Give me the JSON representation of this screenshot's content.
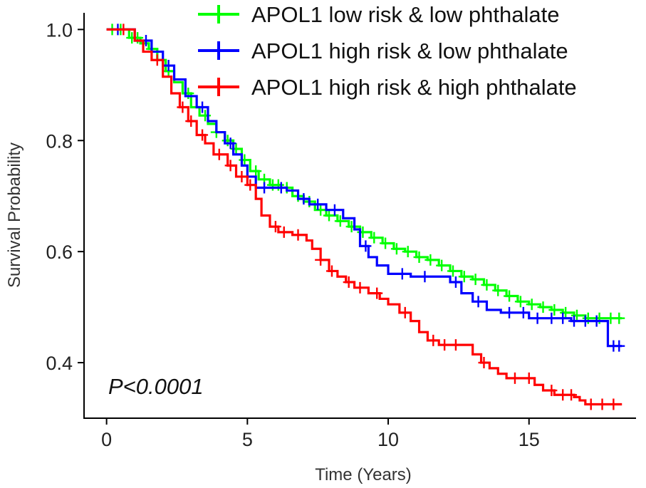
{
  "chart_data": {
    "type": "line",
    "subtype": "kaplan-meier",
    "xlabel": "Time (Years)",
    "ylabel": "Survival Probability",
    "xlim": [
      -0.8,
      18.8
    ],
    "ylim": [
      0.3,
      1.03
    ],
    "xticks": [
      0,
      5,
      10,
      15
    ],
    "xtick_labels": [
      "0",
      "5",
      "10",
      "15"
    ],
    "yticks": [
      0.4,
      0.6,
      0.8,
      1.0
    ],
    "ytick_labels": [
      "0.4",
      "0.6",
      "0.8",
      "1.0"
    ],
    "grid": false,
    "legend_position": "top-right",
    "annotation": "P<0.0001",
    "series": [
      {
        "name": "APOL1 low risk & low phthalate",
        "color": "#00ff00",
        "steps": [
          [
            0,
            1.0
          ],
          [
            0.8,
            0.985
          ],
          [
            1.2,
            0.975
          ],
          [
            1.5,
            0.965
          ],
          [
            1.8,
            0.945
          ],
          [
            2.1,
            0.925
          ],
          [
            2.4,
            0.905
          ],
          [
            2.7,
            0.885
          ],
          [
            3.0,
            0.86
          ],
          [
            3.3,
            0.845
          ],
          [
            3.6,
            0.83
          ],
          [
            3.9,
            0.815
          ],
          [
            4.2,
            0.8
          ],
          [
            4.5,
            0.785
          ],
          [
            4.8,
            0.765
          ],
          [
            5.1,
            0.745
          ],
          [
            5.4,
            0.73
          ],
          [
            5.8,
            0.72
          ],
          [
            6.2,
            0.715
          ],
          [
            6.6,
            0.7
          ],
          [
            7.0,
            0.69
          ],
          [
            7.4,
            0.675
          ],
          [
            7.8,
            0.665
          ],
          [
            8.2,
            0.655
          ],
          [
            8.6,
            0.645
          ],
          [
            9.0,
            0.635
          ],
          [
            9.4,
            0.625
          ],
          [
            9.8,
            0.615
          ],
          [
            10.2,
            0.605
          ],
          [
            10.6,
            0.6
          ],
          [
            11.0,
            0.59
          ],
          [
            11.4,
            0.585
          ],
          [
            11.8,
            0.575
          ],
          [
            12.2,
            0.565
          ],
          [
            12.6,
            0.555
          ],
          [
            13.0,
            0.55
          ],
          [
            13.4,
            0.54
          ],
          [
            13.8,
            0.53
          ],
          [
            14.2,
            0.52
          ],
          [
            14.6,
            0.51
          ],
          [
            15.0,
            0.505
          ],
          [
            15.4,
            0.5
          ],
          [
            15.8,
            0.495
          ],
          [
            16.2,
            0.49
          ],
          [
            16.6,
            0.485
          ],
          [
            17.0,
            0.48
          ],
          [
            18.3,
            0.48
          ]
        ],
        "censor_x": [
          0.2,
          0.5,
          0.9,
          1.1,
          1.6,
          2.2,
          2.9,
          3.5,
          3.9,
          4.3,
          4.6,
          4.9,
          5.3,
          5.6,
          5.9,
          6.1,
          6.4,
          6.8,
          7.2,
          7.6,
          7.9,
          8.3,
          8.7,
          9.1,
          9.5,
          9.9,
          10.3,
          10.7,
          11.1,
          11.5,
          11.9,
          12.3,
          12.7,
          13.1,
          13.5,
          13.9,
          14.3,
          14.7,
          15.1,
          15.5,
          15.9,
          16.3,
          16.7,
          17.1,
          17.5,
          17.9,
          18.2
        ]
      },
      {
        "name": "APOL1 high risk & low phthalate",
        "color": "#0000ff",
        "steps": [
          [
            0,
            1.0
          ],
          [
            1.0,
            0.98
          ],
          [
            1.6,
            0.96
          ],
          [
            2.0,
            0.935
          ],
          [
            2.4,
            0.91
          ],
          [
            2.8,
            0.88
          ],
          [
            3.2,
            0.86
          ],
          [
            3.6,
            0.835
          ],
          [
            3.9,
            0.815
          ],
          [
            4.2,
            0.795
          ],
          [
            4.5,
            0.775
          ],
          [
            4.8,
            0.755
          ],
          [
            5.0,
            0.735
          ],
          [
            5.3,
            0.715
          ],
          [
            6.4,
            0.71
          ],
          [
            6.8,
            0.695
          ],
          [
            7.2,
            0.685
          ],
          [
            7.8,
            0.675
          ],
          [
            8.4,
            0.66
          ],
          [
            8.8,
            0.64
          ],
          [
            9.0,
            0.61
          ],
          [
            9.3,
            0.59
          ],
          [
            9.6,
            0.575
          ],
          [
            10.0,
            0.56
          ],
          [
            10.8,
            0.555
          ],
          [
            12.2,
            0.545
          ],
          [
            12.6,
            0.525
          ],
          [
            13.0,
            0.51
          ],
          [
            13.5,
            0.495
          ],
          [
            14.0,
            0.49
          ],
          [
            15.0,
            0.48
          ],
          [
            16.5,
            0.475
          ],
          [
            17.2,
            0.475
          ],
          [
            17.8,
            0.43
          ],
          [
            18.3,
            0.43
          ]
        ],
        "censor_x": [
          0.4,
          1.4,
          2.2,
          3.4,
          4.4,
          5.6,
          6.2,
          7.0,
          7.5,
          8.1,
          9.2,
          10.5,
          11.3,
          12.4,
          13.2,
          14.3,
          14.8,
          15.3,
          15.8,
          16.2,
          16.6,
          17.0,
          17.4,
          18.0,
          18.2
        ]
      },
      {
        "name": "APOL1 high risk & high phthalate",
        "color": "#ff0000",
        "steps": [
          [
            0,
            1.0
          ],
          [
            1.0,
            0.98
          ],
          [
            1.3,
            0.96
          ],
          [
            1.6,
            0.945
          ],
          [
            2.0,
            0.915
          ],
          [
            2.3,
            0.885
          ],
          [
            2.6,
            0.86
          ],
          [
            2.9,
            0.835
          ],
          [
            3.2,
            0.81
          ],
          [
            3.5,
            0.795
          ],
          [
            3.8,
            0.775
          ],
          [
            4.3,
            0.755
          ],
          [
            4.6,
            0.735
          ],
          [
            5.0,
            0.72
          ],
          [
            5.3,
            0.695
          ],
          [
            5.5,
            0.665
          ],
          [
            5.8,
            0.645
          ],
          [
            6.1,
            0.635
          ],
          [
            6.6,
            0.63
          ],
          [
            7.1,
            0.62
          ],
          [
            7.3,
            0.605
          ],
          [
            7.6,
            0.585
          ],
          [
            7.9,
            0.565
          ],
          [
            8.2,
            0.555
          ],
          [
            8.5,
            0.545
          ],
          [
            8.8,
            0.535
          ],
          [
            9.3,
            0.525
          ],
          [
            9.7,
            0.515
          ],
          [
            10.0,
            0.505
          ],
          [
            10.4,
            0.49
          ],
          [
            10.8,
            0.475
          ],
          [
            11.1,
            0.455
          ],
          [
            11.4,
            0.44
          ],
          [
            11.8,
            0.432
          ],
          [
            12.7,
            0.432
          ],
          [
            13.0,
            0.415
          ],
          [
            13.3,
            0.4
          ],
          [
            13.6,
            0.39
          ],
          [
            13.9,
            0.38
          ],
          [
            14.2,
            0.372
          ],
          [
            15.2,
            0.36
          ],
          [
            15.5,
            0.35
          ],
          [
            15.9,
            0.342
          ],
          [
            16.6,
            0.338
          ],
          [
            16.8,
            0.332
          ],
          [
            17.0,
            0.325
          ],
          [
            18.3,
            0.325
          ]
        ],
        "censor_x": [
          0.6,
          1.8,
          2.7,
          3.0,
          3.4,
          4.0,
          4.4,
          4.8,
          5.1,
          6.0,
          6.3,
          6.8,
          7.6,
          8.0,
          8.6,
          9.0,
          9.6,
          10.6,
          11.6,
          12.0,
          12.4,
          13.4,
          14.5,
          15.0,
          15.8,
          16.2,
          16.5,
          17.2,
          17.6,
          18.0
        ]
      }
    ]
  }
}
